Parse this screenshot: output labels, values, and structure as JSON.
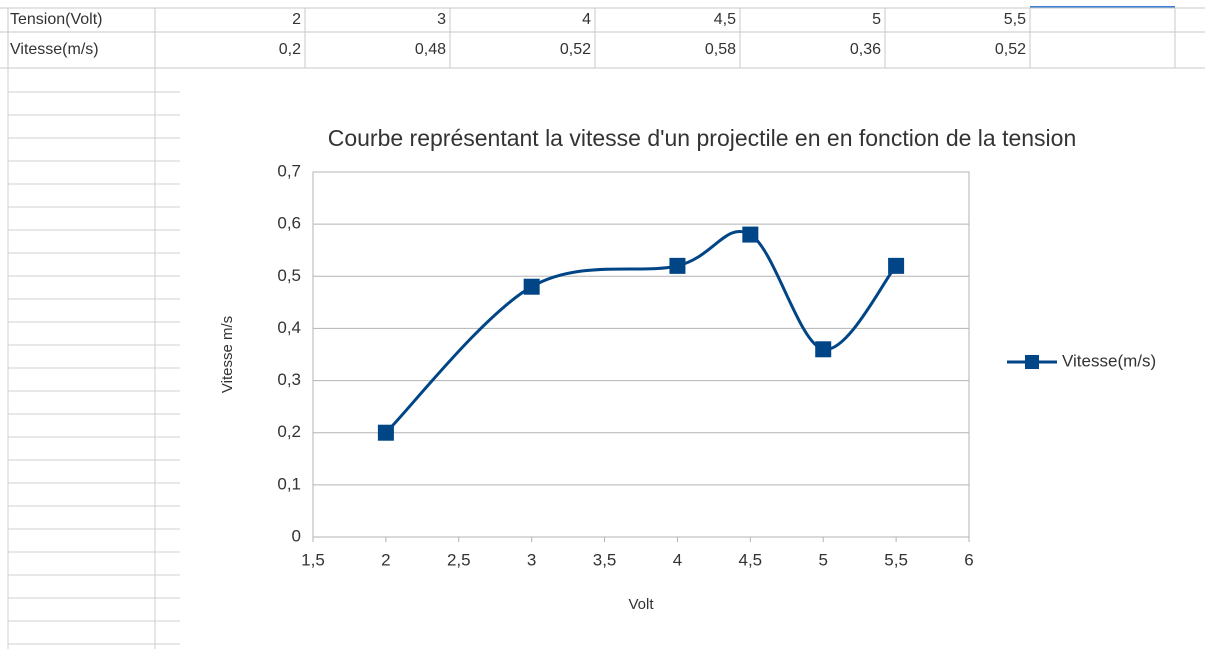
{
  "table": {
    "rows": [
      [
        "Tension(Volt)",
        "2",
        "3",
        "4",
        "4,5",
        "5",
        "5,5"
      ],
      [
        "Vitesse(m/s)",
        "0,2",
        "0,48",
        "0,52",
        "0,58",
        "0,36",
        "0,52"
      ]
    ]
  },
  "chart_data": {
    "type": "line",
    "smooth": true,
    "marker": "square",
    "title": "Courbe représentant la vitesse d'un projectile en en fonction de la tension",
    "xlabel": "Volt",
    "ylabel": "Vitesse m/s",
    "x": [
      2,
      3,
      4,
      4.5,
      5,
      5.5
    ],
    "series": [
      {
        "name": "Vitesse(m/s)",
        "color": "#004586",
        "values": [
          0.2,
          0.48,
          0.52,
          0.58,
          0.36,
          0.52
        ]
      }
    ],
    "xlim": [
      1.5,
      6
    ],
    "xticks": [
      {
        "value": 1.5,
        "label": "1,5"
      },
      2,
      {
        "value": 2.5,
        "label": "2,5"
      },
      3,
      {
        "value": 3.5,
        "label": "3,5"
      },
      4,
      {
        "value": 4.5,
        "label": "4,5"
      },
      5,
      {
        "value": 5.5,
        "label": "5,5"
      },
      6
    ],
    "ylim": [
      0,
      0.7
    ],
    "yticks": [
      0,
      {
        "value": 0.1,
        "label": "0,1"
      },
      {
        "value": 0.2,
        "label": "0,2"
      },
      {
        "value": 0.3,
        "label": "0,3"
      },
      {
        "value": 0.4,
        "label": "0,4"
      },
      {
        "value": 0.5,
        "label": "0,5"
      },
      {
        "value": 0.6,
        "label": "0,6"
      },
      {
        "value": 0.7,
        "label": "0,7"
      }
    ],
    "grid": true,
    "legend": "right"
  }
}
